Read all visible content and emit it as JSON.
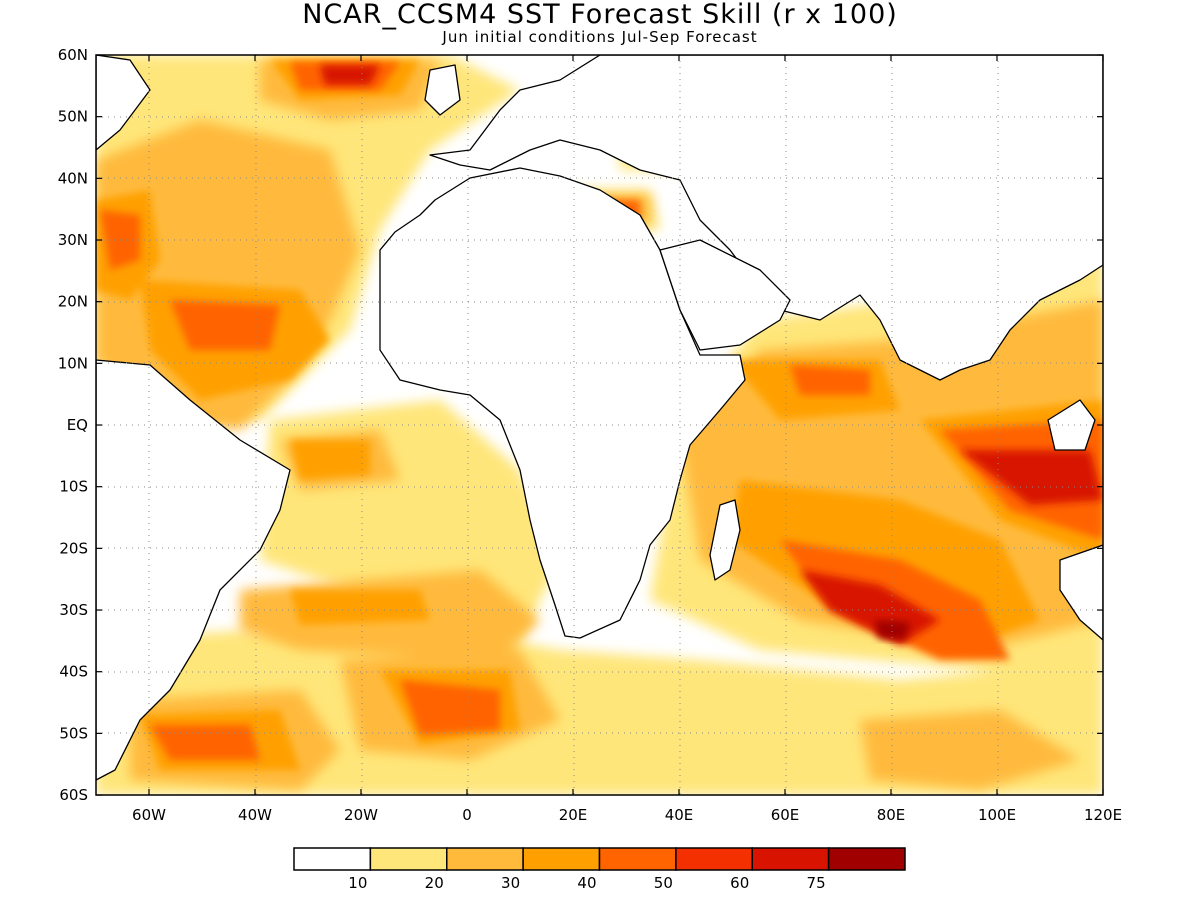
{
  "title": "NCAR_CCSM4 SST Forecast Skill (r x 100)",
  "subtitle": "Jun initial conditions  Jul-Sep Forecast",
  "lon_ticks": [
    "60W",
    "40W",
    "20W",
    "0",
    "20E",
    "40E",
    "60E",
    "80E",
    "100E",
    "120E"
  ],
  "lat_ticks": [
    "60N",
    "50N",
    "40N",
    "30N",
    "20N",
    "10N",
    "EQ",
    "10S",
    "20S",
    "30S",
    "40S",
    "50S",
    "60S"
  ],
  "colorbar": {
    "colors": [
      "#ffffff",
      "#ffe67a",
      "#ffba3c",
      "#ffa000",
      "#ff6400",
      "#f53000",
      "#d81400",
      "#a00000"
    ],
    "labels": [
      "10",
      "20",
      "30",
      "40",
      "50",
      "60",
      "75"
    ]
  }
}
